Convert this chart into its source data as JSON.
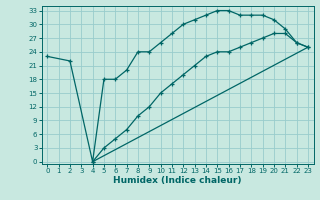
{
  "bg_color": "#c8e8e0",
  "grid_color": "#99cccc",
  "line_color": "#006666",
  "xlabel": "Humidex (Indice chaleur)",
  "xlim": [
    -0.5,
    23.5
  ],
  "ylim": [
    -0.5,
    34
  ],
  "xticks": [
    0,
    1,
    2,
    3,
    4,
    5,
    6,
    7,
    8,
    9,
    10,
    11,
    12,
    13,
    14,
    15,
    16,
    17,
    18,
    19,
    20,
    21,
    22,
    23
  ],
  "yticks": [
    0,
    3,
    6,
    9,
    12,
    15,
    18,
    21,
    24,
    27,
    30,
    33
  ],
  "curve1_x": [
    0,
    2,
    4,
    5,
    6,
    7,
    8,
    9,
    10,
    11,
    12,
    13,
    14,
    15,
    16,
    17,
    18,
    19,
    20,
    21,
    22,
    23
  ],
  "curve1_y": [
    23,
    22,
    0,
    18,
    18,
    20,
    24,
    24,
    26,
    28,
    30,
    31,
    32,
    33,
    33,
    32,
    32,
    32,
    31,
    29,
    26,
    25
  ],
  "curve2_x": [
    4,
    5,
    6,
    7,
    8,
    9,
    10,
    11,
    12,
    13,
    14,
    15,
    16,
    17,
    18,
    19,
    20,
    21,
    22,
    23
  ],
  "curve2_y": [
    0,
    3,
    5,
    7,
    10,
    12,
    15,
    17,
    19,
    21,
    23,
    24,
    24,
    25,
    26,
    27,
    28,
    28,
    26,
    25
  ],
  "curve3_x": [
    4,
    23
  ],
  "curve3_y": [
    0,
    25
  ],
  "title_fontsize": 7,
  "tick_fontsize": 5,
  "xlabel_fontsize": 6.5
}
